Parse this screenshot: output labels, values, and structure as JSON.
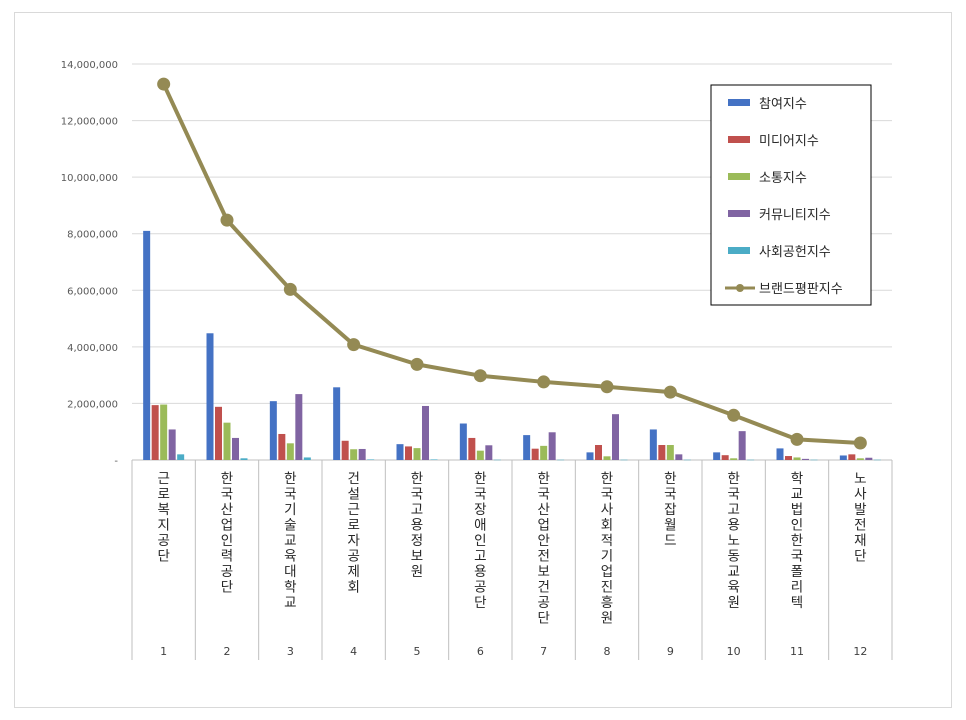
{
  "chart_data": {
    "type": "bar",
    "title": "",
    "xlabel": "",
    "ylabel": "",
    "ylim": [
      0,
      14000000
    ],
    "yticks": [
      "-",
      "2,000,000",
      "4,000,000",
      "6,000,000",
      "8,000,000",
      "10,000,000",
      "12,000,000",
      "14,000,000"
    ],
    "grid": true,
    "legend_position": "top-right",
    "categories": [
      "근로복지공단",
      "한국산업인력공단",
      "한국기술교육대학교",
      "건설근로자공제회",
      "한국고용정보원",
      "한국장애인고용공단",
      "한국산업안전보건공단",
      "한국사회적기업진흥원",
      "한국잡월드",
      "한국고용노동교육원",
      "학교법인한국폴리텍",
      "노사발전재단"
    ],
    "ranks": [
      "1",
      "2",
      "3",
      "4",
      "5",
      "6",
      "7",
      "8",
      "9",
      "10",
      "11",
      "12"
    ],
    "series": [
      {
        "name": "참여지수",
        "kind": "bar",
        "color": "#4472c4",
        "values": [
          8100000,
          4480000,
          2080000,
          2570000,
          560000,
          1290000,
          880000,
          270000,
          1080000,
          270000,
          410000,
          160000
        ]
      },
      {
        "name": "미디어지수",
        "kind": "bar",
        "color": "#c0504d",
        "values": [
          1940000,
          1880000,
          920000,
          680000,
          480000,
          780000,
          400000,
          530000,
          530000,
          170000,
          140000,
          200000
        ]
      },
      {
        "name": "소통지수",
        "kind": "bar",
        "color": "#9bbb59",
        "values": [
          1960000,
          1320000,
          590000,
          380000,
          420000,
          330000,
          500000,
          130000,
          530000,
          60000,
          90000,
          60000
        ]
      },
      {
        "name": "커뮤니티지수",
        "kind": "bar",
        "color": "#8064a2",
        "values": [
          1080000,
          780000,
          2330000,
          390000,
          1910000,
          520000,
          980000,
          1620000,
          200000,
          1020000,
          40000,
          80000
        ]
      },
      {
        "name": "사회공헌지수",
        "kind": "bar",
        "color": "#4bacc6",
        "values": [
          200000,
          60000,
          90000,
          20000,
          20000,
          10000,
          10000,
          10000,
          10000,
          10000,
          10000,
          10000
        ]
      },
      {
        "name": "브랜드평판지수",
        "kind": "line",
        "color": "#948a54",
        "values": [
          13290000,
          8480000,
          6030000,
          4080000,
          3380000,
          2980000,
          2760000,
          2590000,
          2400000,
          1580000,
          730000,
          600000
        ]
      }
    ]
  }
}
